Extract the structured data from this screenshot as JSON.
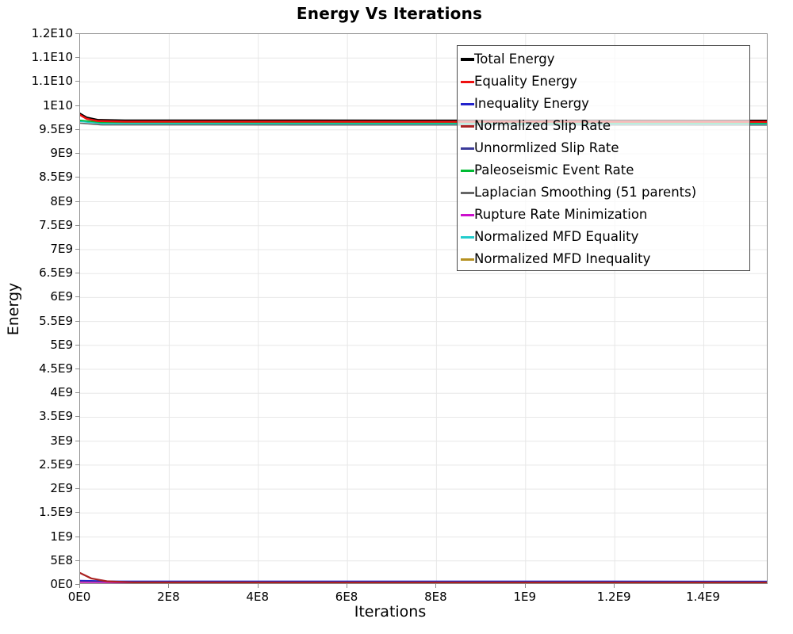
{
  "title": "Energy Vs Iterations",
  "axes": {
    "x": {
      "label": "Iterations",
      "ticks": [
        {
          "label": "0E0",
          "value": 0
        },
        {
          "label": "2E8",
          "value": 200000000.0
        },
        {
          "label": "4E8",
          "value": 400000000.0
        },
        {
          "label": "6E8",
          "value": 600000000.0
        },
        {
          "label": "8E8",
          "value": 800000000.0
        },
        {
          "label": "1E9",
          "value": 1000000000.0
        },
        {
          "label": "1.2E9",
          "value": 1200000000.0
        },
        {
          "label": "1.4E9",
          "value": 1400000000.0
        }
      ]
    },
    "y": {
      "label": "Energy",
      "tick_labels": [
        "1.2E10",
        "1.1E10",
        "1.1E10",
        "1E10",
        "9.5E9",
        "9E9",
        "8.5E9",
        "8E9",
        "7.5E9",
        "7E9",
        "6.5E9",
        "6E9",
        "5.5E9",
        "5E9",
        "4.5E9",
        "4E9",
        "3.5E9",
        "3E9",
        "2.5E9",
        "2E9",
        "1.5E9",
        "1E9",
        "5E8",
        "0E0"
      ]
    }
  },
  "chart_data": {
    "type": "line",
    "title": "Energy Vs Iterations",
    "xlabel": "Iterations",
    "ylabel": "Energy",
    "xlim": [
      0,
      1545000000.0
    ],
    "ylim": [
      0,
      11500000000.0
    ],
    "grid": true,
    "grid_color": "#e7e7e7",
    "legend_position": "top-right-inside",
    "draw_order": [
      6,
      8,
      5,
      2,
      4,
      7,
      9,
      3,
      0,
      1
    ],
    "series": [
      {
        "name": "Total Energy",
        "color": "#000000",
        "width": 2.2,
        "points": [
          [
            0,
            9840000000.0
          ],
          [
            15000000.0,
            9760000000.0
          ],
          [
            40000000.0,
            9710000000.0
          ],
          [
            100000000.0,
            9700000000.0
          ],
          [
            1545000000.0,
            9695000000.0
          ]
        ]
      },
      {
        "name": "Equality Energy",
        "color": "#ee1111",
        "width": 2.5,
        "points": [
          [
            0,
            9810000000.0
          ],
          [
            15000000.0,
            9730000000.0
          ],
          [
            40000000.0,
            9685000000.0
          ],
          [
            100000000.0,
            9672000000.0
          ],
          [
            1545000000.0,
            9668000000.0
          ]
        ]
      },
      {
        "name": "Inequality Energy",
        "color": "#2222cc",
        "width": 1.6,
        "points": [
          [
            0,
            90000000.0
          ],
          [
            80000000.0,
            76000000.0
          ],
          [
            1545000000.0,
            75000000.0
          ]
        ]
      },
      {
        "name": "Normalized Slip Rate",
        "color": "#aa2222",
        "width": 2.2,
        "points": [
          [
            0,
            248000000.0
          ],
          [
            25000000.0,
            135000000.0
          ],
          [
            60000000.0,
            75000000.0
          ],
          [
            120000000.0,
            52000000.0
          ],
          [
            1545000000.0,
            50000000.0
          ]
        ]
      },
      {
        "name": "Unnormlized Slip Rate",
        "color": "#3a3a99",
        "width": 1.6,
        "points": [
          [
            0,
            70000000.0
          ],
          [
            80000000.0,
            60000000.0
          ],
          [
            1545000000.0,
            60000000.0
          ]
        ]
      },
      {
        "name": "Paleoseismic Event Rate",
        "color": "#00bb33",
        "width": 1.6,
        "points": [
          [
            0,
            9700000000.0
          ],
          [
            50000000.0,
            9655000000.0
          ],
          [
            1545000000.0,
            9645000000.0
          ]
        ]
      },
      {
        "name": "Laplacian Smoothing (51 parents)",
        "color": "#666666",
        "width": 1.6,
        "points": [
          [
            0,
            9640000000.0
          ],
          [
            50000000.0,
            9603000000.0
          ],
          [
            1545000000.0,
            9600000000.0
          ]
        ]
      },
      {
        "name": "Rupture Rate Minimization",
        "color": "#cc11cc",
        "width": 1.6,
        "points": [
          [
            0,
            55000000.0
          ],
          [
            80000000.0,
            46000000.0
          ],
          [
            1545000000.0,
            45000000.0
          ]
        ]
      },
      {
        "name": "Normalized MFD Equality",
        "color": "#22cccc",
        "width": 2.0,
        "points": [
          [
            0,
            9680000000.0
          ],
          [
            50000000.0,
            9632000000.0
          ],
          [
            1545000000.0,
            9625000000.0
          ]
        ]
      },
      {
        "name": "Normalized MFD Inequality",
        "color": "#b5901f",
        "width": 2.0,
        "points": [
          [
            0,
            22000000.0
          ],
          [
            100000000.0,
            16000000.0
          ],
          [
            1545000000.0,
            15000000.0
          ]
        ]
      }
    ]
  }
}
